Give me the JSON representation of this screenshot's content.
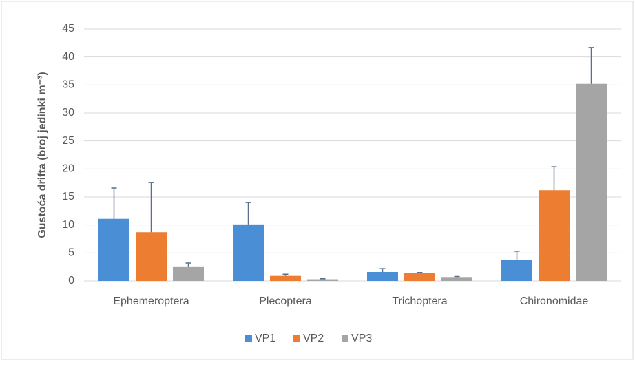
{
  "chart_data": {
    "type": "bar",
    "y_label": "Gustoća drifta (broj jedinki m⁻³)",
    "categories": [
      "Ephemeroptera",
      "Plecoptera",
      "Trichoptera",
      "Chironomidae"
    ],
    "series": [
      {
        "name": "VP1",
        "color": "#4a8fd6",
        "values": [
          11.1,
          10.1,
          1.6,
          3.7
        ],
        "errors": [
          5.5,
          3.9,
          0.6,
          1.6
        ]
      },
      {
        "name": "VP2",
        "color": "#ed7d31",
        "values": [
          8.7,
          0.9,
          1.4,
          16.2
        ],
        "errors": [
          8.9,
          0.3,
          0.1,
          4.2
        ]
      },
      {
        "name": "VP3",
        "color": "#a5a5a5",
        "values": [
          2.6,
          0.3,
          0.7,
          35.2
        ],
        "errors": [
          0.6,
          0.1,
          0.1,
          6.5
        ]
      }
    ],
    "ylim": [
      0,
      45
    ],
    "yticks": [
      0,
      5,
      10,
      15,
      20,
      25,
      30,
      35,
      40,
      45
    ],
    "grid": true,
    "legend": "bottom"
  }
}
